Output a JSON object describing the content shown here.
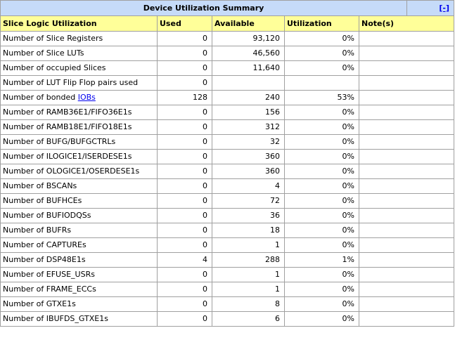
{
  "title": "Device Utilization Summary",
  "toggle_label": "[-]",
  "headers": {
    "logic": "Slice Logic Utilization",
    "used": "Used",
    "available": "Available",
    "utilization": "Utilization",
    "notes": "Note(s)"
  },
  "rows": [
    {
      "name": "Number of Slice Registers",
      "used": "0",
      "available": "93,120",
      "utilization": "0%",
      "notes": ""
    },
    {
      "name": "Number of Slice LUTs",
      "used": "0",
      "available": "46,560",
      "utilization": "0%",
      "notes": ""
    },
    {
      "name": "Number of occupied Slices",
      "used": "0",
      "available": "11,640",
      "utilization": "0%",
      "notes": ""
    },
    {
      "name": "Number of LUT Flip Flop pairs used",
      "used": "0",
      "available": "",
      "utilization": "",
      "notes": ""
    },
    {
      "name": "Number of bonded ",
      "link": "IOBs",
      "used": "128",
      "available": "240",
      "utilization": "53%",
      "notes": ""
    },
    {
      "name": "Number of RAMB36E1/FIFO36E1s",
      "used": "0",
      "available": "156",
      "utilization": "0%",
      "notes": ""
    },
    {
      "name": "Number of RAMB18E1/FIFO18E1s",
      "used": "0",
      "available": "312",
      "utilization": "0%",
      "notes": ""
    },
    {
      "name": "Number of BUFG/BUFGCTRLs",
      "used": "0",
      "available": "32",
      "utilization": "0%",
      "notes": ""
    },
    {
      "name": "Number of ILOGICE1/ISERDESE1s",
      "used": "0",
      "available": "360",
      "utilization": "0%",
      "notes": ""
    },
    {
      "name": "Number of OLOGICE1/OSERDESE1s",
      "used": "0",
      "available": "360",
      "utilization": "0%",
      "notes": ""
    },
    {
      "name": "Number of BSCANs",
      "used": "0",
      "available": "4",
      "utilization": "0%",
      "notes": ""
    },
    {
      "name": "Number of BUFHCEs",
      "used": "0",
      "available": "72",
      "utilization": "0%",
      "notes": ""
    },
    {
      "name": "Number of BUFIODQSs",
      "used": "0",
      "available": "36",
      "utilization": "0%",
      "notes": ""
    },
    {
      "name": "Number of BUFRs",
      "used": "0",
      "available": "18",
      "utilization": "0%",
      "notes": ""
    },
    {
      "name": "Number of CAPTUREs",
      "used": "0",
      "available": "1",
      "utilization": "0%",
      "notes": ""
    },
    {
      "name": "Number of DSP48E1s",
      "used": "4",
      "available": "288",
      "utilization": "1%",
      "notes": ""
    },
    {
      "name": "Number of EFUSE_USRs",
      "used": "0",
      "available": "1",
      "utilization": "0%",
      "notes": ""
    },
    {
      "name": "Number of FRAME_ECCs",
      "used": "0",
      "available": "1",
      "utilization": "0%",
      "notes": ""
    },
    {
      "name": "Number of GTXE1s",
      "used": "0",
      "available": "8",
      "utilization": "0%",
      "notes": ""
    },
    {
      "name": "Number of IBUFDS_GTXE1s",
      "used": "0",
      "available": "6",
      "utilization": "0%",
      "notes": ""
    }
  ]
}
